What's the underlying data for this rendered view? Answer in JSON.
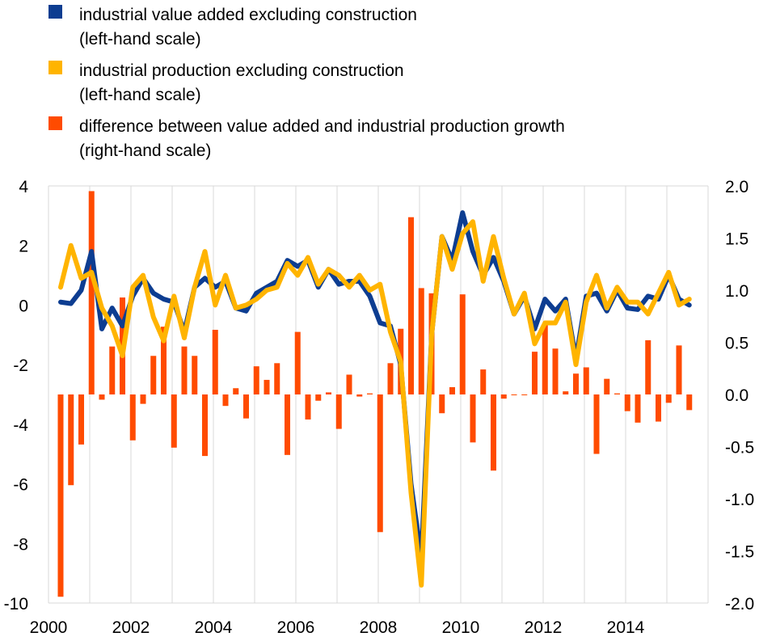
{
  "legend": [
    {
      "line1": "industrial value added excluding construction",
      "line2": "(left-hand scale)",
      "color": "#0d3d91"
    },
    {
      "line1": "industrial production excluding construction",
      "line2": "(left-hand scale)",
      "color": "#ffb400"
    },
    {
      "line1": "difference between value added and industrial production growth",
      "line2": "(right-hand scale)",
      "color": "#ff4b00"
    }
  ],
  "chart_data": {
    "type": "line",
    "left_axis": {
      "ylim": [
        -10,
        4
      ],
      "ticks": [
        "4",
        "2",
        "0",
        "-2",
        "-4",
        "-6",
        "-8",
        "-10"
      ]
    },
    "right_axis": {
      "ylim": [
        -2.0,
        2.0
      ],
      "ticks": [
        "2.0",
        "1.5",
        "1.0",
        "0.5",
        "0.0",
        "-0.5",
        "-1.0",
        "-1.5",
        "-2.0"
      ]
    },
    "x_axis": {
      "xlim": [
        2000,
        2016
      ],
      "ticks": [
        "2000",
        "2002",
        "2004",
        "2006",
        "2008",
        "2010",
        "2012",
        "2014"
      ]
    },
    "grid": "vertical",
    "x": [
      2000.25,
      2000.5,
      2000.75,
      2001.0,
      2001.25,
      2001.5,
      2001.75,
      2002.0,
      2002.25,
      2002.5,
      2002.75,
      2003.0,
      2003.25,
      2003.5,
      2003.75,
      2004.0,
      2004.25,
      2004.5,
      2004.75,
      2005.0,
      2005.25,
      2005.5,
      2005.75,
      2006.0,
      2006.25,
      2006.5,
      2006.75,
      2007.0,
      2007.25,
      2007.5,
      2007.75,
      2008.0,
      2008.25,
      2008.5,
      2008.75,
      2009.0,
      2009.25,
      2009.5,
      2009.75,
      2010.0,
      2010.25,
      2010.5,
      2010.75,
      2011.0,
      2011.25,
      2011.5,
      2011.75,
      2012.0,
      2012.25,
      2012.5,
      2012.75,
      2013.0,
      2013.25,
      2013.5,
      2013.75,
      2014.0,
      2014.25,
      2014.5,
      2014.75,
      2015.0,
      2015.25,
      2015.5
    ],
    "series": [
      {
        "name": "industrial value added excluding construction",
        "axis": "left",
        "color": "#0d3d91",
        "values": [
          0.1,
          0.05,
          0.5,
          1.8,
          -0.8,
          -0.1,
          -0.7,
          0.3,
          0.9,
          0.4,
          0.2,
          0.1,
          -0.9,
          0.6,
          0.9,
          0.6,
          0.8,
          -0.1,
          -0.2,
          0.4,
          0.6,
          0.8,
          1.5,
          1.3,
          1.5,
          0.6,
          1.2,
          0.7,
          0.8,
          0.8,
          0.3,
          -0.6,
          -0.7,
          -2.0,
          -6.0,
          -8.5,
          -1.0,
          2.3,
          1.5,
          3.1,
          1.8,
          1.0,
          1.6,
          0.8,
          -0.3,
          0.3,
          -0.8,
          0.2,
          -0.2,
          0.2,
          -1.8,
          0.3,
          0.4,
          -0.2,
          0.5,
          -0.1,
          -0.15,
          0.3,
          0.2,
          1.0,
          0.2,
          0.0
        ]
      },
      {
        "name": "industrial production excluding construction",
        "axis": "left",
        "color": "#ffb400",
        "values": [
          0.6,
          2.0,
          0.9,
          1.1,
          -0.1,
          -0.7,
          -1.7,
          0.6,
          1.0,
          -0.4,
          -1.2,
          0.3,
          -1.1,
          0.6,
          1.8,
          0.0,
          1.0,
          -0.1,
          0.0,
          0.2,
          0.5,
          0.6,
          1.4,
          1.0,
          1.6,
          0.7,
          1.2,
          1.0,
          0.6,
          1.0,
          0.5,
          0.7,
          -0.9,
          -1.9,
          -6.3,
          -9.4,
          -1.0,
          2.3,
          1.2,
          2.4,
          2.8,
          0.8,
          2.3,
          0.9,
          -0.3,
          0.4,
          -1.3,
          -0.6,
          -0.6,
          0.1,
          -2.0,
          0.1,
          1.0,
          -0.1,
          0.6,
          0.1,
          0.1,
          -0.3,
          0.4,
          1.1,
          0.0,
          0.2
        ]
      },
      {
        "name": "difference between value added and industrial production growth",
        "axis": "right",
        "type": "bar",
        "color": "#ff4b00",
        "values": [
          -1.94,
          -0.87,
          -0.48,
          1.95,
          -0.05,
          0.46,
          0.93,
          -0.44,
          -0.09,
          0.37,
          0.65,
          -0.51,
          0.46,
          0.37,
          -0.59,
          0.62,
          -0.11,
          0.06,
          -0.23,
          0.27,
          0.14,
          0.3,
          -0.58,
          0.6,
          -0.24,
          -0.06,
          0.02,
          -0.33,
          0.19,
          -0.02,
          0.01,
          -1.32,
          0.3,
          0.63,
          1.7,
          1.02,
          0.97,
          -0.18,
          0.07,
          0.96,
          -0.46,
          0.24,
          -0.73,
          -0.04,
          0.0,
          0.0,
          0.41,
          0.67,
          0.44,
          0.03,
          0.2,
          0.26,
          -0.57,
          0.15,
          0.01,
          -0.16,
          -0.27,
          0.52,
          -0.26,
          -0.08,
          0.47,
          -0.15
        ]
      }
    ]
  }
}
